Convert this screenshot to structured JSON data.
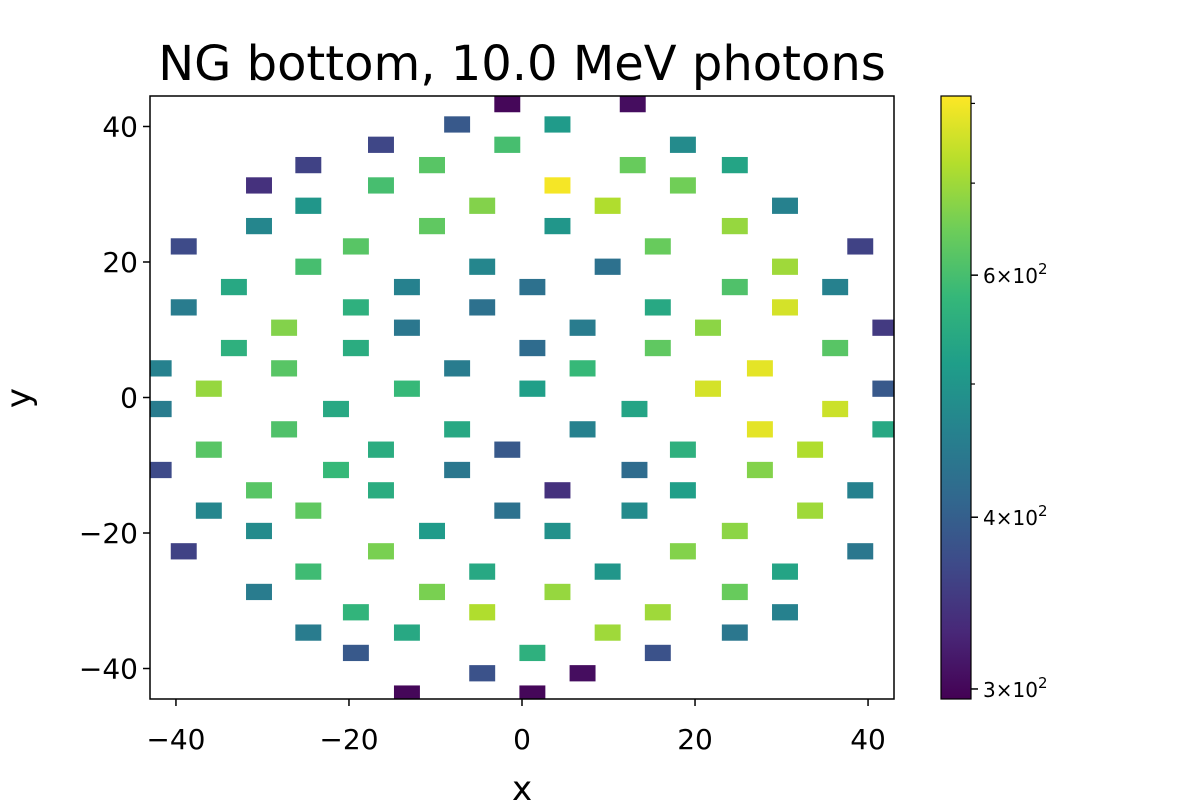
{
  "chart_data": {
    "type": "heatmap",
    "title": "NG bottom, 10.0 MeV photons",
    "xlabel": "x",
    "ylabel": "y",
    "xlim": [
      -43,
      43
    ],
    "ylim": [
      -44.5,
      44.5
    ],
    "xticks": [
      -40,
      -20,
      0,
      20,
      40
    ],
    "yticks": [
      -40,
      -20,
      0,
      20,
      40
    ],
    "xtick_labels": [
      "−40",
      "−20",
      "0",
      "20",
      "40"
    ],
    "ytick_labels": [
      "−40",
      "−20",
      "0",
      "20",
      "40"
    ],
    "colormap": "viridis",
    "colorbar": {
      "scale": "log",
      "range": [
        295,
        810
      ],
      "major_ticks": [
        {
          "value": 300,
          "base": "3",
          "exp": "2"
        },
        {
          "value": 400,
          "base": "4",
          "exp": "2"
        },
        {
          "value": 600,
          "base": "6",
          "exp": "2"
        }
      ],
      "minor_ticks": [
        500,
        700,
        800
      ]
    },
    "points": [
      [
        -1.7,
        43.3,
        300
      ],
      [
        12.8,
        43.3,
        305
      ],
      [
        -7.5,
        40.3,
        390
      ],
      [
        4.1,
        40.3,
        510
      ],
      [
        -16.3,
        37.3,
        365
      ],
      [
        -1.7,
        37.3,
        600
      ],
      [
        18.6,
        37.3,
        480
      ],
      [
        -24.7,
        34.3,
        360
      ],
      [
        -10.4,
        34.3,
        620
      ],
      [
        12.8,
        34.3,
        640
      ],
      [
        24.6,
        34.3,
        530
      ],
      [
        -30.4,
        31.3,
        340
      ],
      [
        -16.3,
        31.3,
        600
      ],
      [
        4.1,
        31.3,
        800
      ],
      [
        18.6,
        31.3,
        650
      ],
      [
        -24.7,
        28.3,
        500
      ],
      [
        -4.6,
        28.3,
        670
      ],
      [
        9.9,
        28.3,
        720
      ],
      [
        30.4,
        28.3,
        460
      ],
      [
        -30.4,
        25.3,
        470
      ],
      [
        -10.4,
        25.3,
        630
      ],
      [
        4.1,
        25.3,
        500
      ],
      [
        24.6,
        25.3,
        690
      ],
      [
        -39.1,
        22.3,
        370
      ],
      [
        -19.2,
        22.3,
        620
      ],
      [
        15.7,
        22.3,
        640
      ],
      [
        39.1,
        22.3,
        360
      ],
      [
        -24.7,
        19.3,
        600
      ],
      [
        -4.6,
        19.3,
        470
      ],
      [
        9.9,
        19.3,
        430
      ],
      [
        30.4,
        19.3,
        700
      ],
      [
        -33.3,
        16.3,
        540
      ],
      [
        -13.3,
        16.3,
        460
      ],
      [
        1.2,
        16.3,
        430
      ],
      [
        24.6,
        16.3,
        610
      ],
      [
        36.2,
        16.3,
        460
      ],
      [
        -39.1,
        13.3,
        450
      ],
      [
        -19.2,
        13.3,
        560
      ],
      [
        -4.6,
        13.3,
        430
      ],
      [
        15.7,
        13.3,
        540
      ],
      [
        30.4,
        13.3,
        760
      ],
      [
        -27.5,
        10.3,
        670
      ],
      [
        -13.3,
        10.3,
        440
      ],
      [
        7.0,
        10.3,
        450
      ],
      [
        21.5,
        10.3,
        680
      ],
      [
        42.0,
        10.3,
        350
      ],
      [
        -33.3,
        7.3,
        560
      ],
      [
        -19.2,
        7.3,
        550
      ],
      [
        1.2,
        7.3,
        420
      ],
      [
        15.7,
        7.3,
        630
      ],
      [
        36.2,
        7.3,
        620
      ],
      [
        -42.0,
        4.3,
        460
      ],
      [
        -27.5,
        4.3,
        620
      ],
      [
        -7.5,
        4.3,
        450
      ],
      [
        7.0,
        4.3,
        580
      ],
      [
        27.5,
        4.3,
        780
      ],
      [
        -36.2,
        1.3,
        690
      ],
      [
        -13.3,
        1.3,
        580
      ],
      [
        1.2,
        1.3,
        520
      ],
      [
        21.5,
        1.3,
        760
      ],
      [
        42.0,
        1.3,
        390
      ],
      [
        -42.0,
        -1.7,
        450
      ],
      [
        -21.5,
        -1.7,
        540
      ],
      [
        13.0,
        -1.7,
        530
      ],
      [
        36.2,
        -1.7,
        750
      ],
      [
        -27.5,
        -4.7,
        610
      ],
      [
        -7.5,
        -4.7,
        540
      ],
      [
        7.0,
        -4.7,
        460
      ],
      [
        27.5,
        -4.7,
        780
      ],
      [
        42.0,
        -4.7,
        540
      ],
      [
        -36.2,
        -7.7,
        620
      ],
      [
        -16.3,
        -7.7,
        550
      ],
      [
        -1.7,
        -7.7,
        390
      ],
      [
        18.6,
        -7.7,
        560
      ],
      [
        33.3,
        -7.7,
        720
      ],
      [
        -42.0,
        -10.7,
        370
      ],
      [
        -21.5,
        -10.7,
        580
      ],
      [
        -7.5,
        -10.7,
        440
      ],
      [
        13.0,
        -10.7,
        420
      ],
      [
        27.5,
        -10.7,
        670
      ],
      [
        -30.4,
        -13.7,
        620
      ],
      [
        -16.3,
        -13.7,
        550
      ],
      [
        4.1,
        -13.7,
        340
      ],
      [
        18.6,
        -13.7,
        520
      ],
      [
        39.1,
        -13.7,
        460
      ],
      [
        -36.2,
        -16.7,
        470
      ],
      [
        -24.7,
        -16.7,
        630
      ],
      [
        -1.7,
        -16.7,
        430
      ],
      [
        13.0,
        -16.7,
        480
      ],
      [
        33.3,
        -16.7,
        700
      ],
      [
        -30.4,
        -19.7,
        480
      ],
      [
        -10.4,
        -19.7,
        510
      ],
      [
        4.1,
        -19.7,
        490
      ],
      [
        24.6,
        -19.7,
        680
      ],
      [
        -39.1,
        -22.7,
        360
      ],
      [
        -16.3,
        -22.7,
        660
      ],
      [
        18.6,
        -22.7,
        670
      ],
      [
        39.1,
        -22.7,
        440
      ],
      [
        -24.7,
        -25.7,
        590
      ],
      [
        -4.6,
        -25.7,
        540
      ],
      [
        9.9,
        -25.7,
        500
      ],
      [
        30.4,
        -25.7,
        530
      ],
      [
        -30.4,
        -28.7,
        450
      ],
      [
        -10.4,
        -28.7,
        660
      ],
      [
        4.1,
        -28.7,
        690
      ],
      [
        24.6,
        -28.7,
        640
      ],
      [
        -19.2,
        -31.7,
        570
      ],
      [
        -4.6,
        -31.7,
        720
      ],
      [
        15.7,
        -31.7,
        700
      ],
      [
        30.4,
        -31.7,
        460
      ],
      [
        -24.7,
        -34.7,
        450
      ],
      [
        -13.3,
        -34.7,
        540
      ],
      [
        9.9,
        -34.7,
        700
      ],
      [
        24.6,
        -34.7,
        440
      ],
      [
        -19.2,
        -37.7,
        390
      ],
      [
        1.2,
        -37.7,
        560
      ],
      [
        15.7,
        -37.7,
        380
      ],
      [
        -4.6,
        -40.7,
        380
      ],
      [
        7.0,
        -40.7,
        305
      ],
      [
        -13.3,
        -43.7,
        300
      ],
      [
        1.2,
        -43.7,
        300
      ]
    ]
  }
}
